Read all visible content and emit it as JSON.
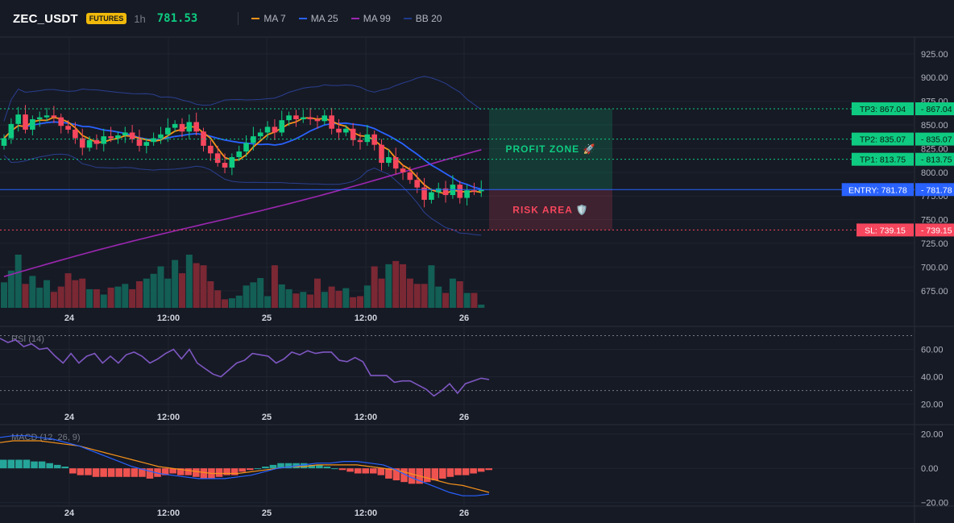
{
  "header": {
    "symbol": "ZEC_USDT",
    "badge": "FUTURES",
    "timeframe": "1h",
    "last_price": "781.53",
    "legend": [
      {
        "label": "MA 7",
        "color": "#f7931a"
      },
      {
        "label": "MA 25",
        "color": "#2962ff"
      },
      {
        "label": "MA 99",
        "color": "#9c27b0"
      },
      {
        "label": "BB 20",
        "color": "#1e3a8a"
      }
    ]
  },
  "chart_data": [
    {
      "type": "candlestick",
      "title": "",
      "y_ticks": [
        675,
        700,
        725,
        750,
        775,
        800,
        825,
        850,
        875,
        900,
        925
      ],
      "y_tick_labels": [
        "675.00",
        "700.00",
        "725.00",
        "750.00",
        "775.00",
        "800.00",
        "825.00",
        "850.00",
        "875.00",
        "900.00",
        "925.00"
      ],
      "ylim": [
        657,
        941
      ],
      "x_tick_labels": [
        "24",
        "12:00",
        "25",
        "12:00",
        "26"
      ],
      "closes": [
        836,
        851,
        861,
        845,
        856,
        858,
        860,
        858,
        849,
        845,
        836,
        826,
        834,
        830,
        838,
        836,
        839,
        842,
        835,
        828,
        832,
        836,
        840,
        847,
        851,
        843,
        853,
        843,
        828,
        820,
        810,
        805,
        816,
        822,
        831,
        838,
        842,
        848,
        842,
        855,
        860,
        856,
        858,
        856,
        854,
        860,
        846,
        842,
        846,
        834,
        832,
        840,
        829,
        810,
        816,
        804,
        800,
        792,
        784,
        771,
        779,
        783,
        776,
        787,
        773,
        781,
        780,
        781.53
      ],
      "volume_levels": [
        0.48,
        0.7,
        1.0,
        0.45,
        0.6,
        0.38,
        0.52,
        0.3,
        0.4,
        0.65,
        0.52,
        0.55,
        0.35,
        0.35,
        0.25,
        0.38,
        0.4,
        0.45,
        0.35,
        0.5,
        0.55,
        0.64,
        0.78,
        0.55,
        0.9,
        0.65,
        1.0,
        0.84,
        0.8,
        0.5,
        0.33,
        0.16,
        0.18,
        0.23,
        0.42,
        0.48,
        0.56,
        0.22,
        0.8,
        0.44,
        0.35,
        0.27,
        0.3,
        0.25,
        0.55,
        0.3,
        0.4,
        0.32,
        0.37,
        0.2,
        0.22,
        0.42,
        0.78,
        0.55,
        0.82,
        0.88,
        0.82,
        0.55,
        0.45,
        0.45,
        0.8,
        0.4,
        0.28,
        0.55,
        0.5,
        0.28,
        0.28,
        0.06
      ],
      "trade": {
        "tp3": {
          "label": "TP3: 867.04",
          "value": 867.04,
          "axis_label": "867.04"
        },
        "tp2": {
          "label": "TP2: 835.07",
          "value": 835.07,
          "axis_label": "835.07"
        },
        "tp1": {
          "label": "TP1: 813.75",
          "value": 813.75,
          "axis_label": "813.75"
        },
        "entry": {
          "label": "ENTRY: 781.78",
          "value": 781.78,
          "axis_label": "781.78"
        },
        "sl": {
          "label": "SL: 739.15",
          "value": 739.15,
          "axis_label": "739.15"
        },
        "profit_zone_label": "PROFIT ZONE 🚀",
        "risk_area_label": "RISK AREA 🛡️"
      }
    },
    {
      "type": "line",
      "title": "RSI (14)",
      "y_tick_labels": [
        "60.00",
        "40.00",
        "20.00"
      ],
      "y_ticks": [
        60,
        40,
        20
      ],
      "ylim": [
        18,
        75
      ],
      "levels": [
        70,
        30
      ],
      "x_tick_labels": [
        "24",
        "12:00",
        "25",
        "12:00",
        "26"
      ],
      "rsi": [
        68,
        65,
        67,
        62,
        64,
        60,
        61,
        55,
        50,
        57,
        50,
        55,
        57,
        50,
        55,
        50,
        56,
        58,
        55,
        50,
        53,
        57,
        60,
        53,
        60,
        50,
        46,
        42,
        40,
        45,
        50,
        52,
        57,
        56,
        55,
        50,
        53,
        58,
        56,
        59,
        57,
        58,
        58,
        52,
        51,
        54,
        51,
        41,
        41,
        41,
        36,
        37,
        37,
        34,
        31,
        26,
        30,
        35,
        28,
        35,
        37,
        39,
        38
      ],
      "color": "#7e57c2"
    },
    {
      "type": "bar",
      "title": "MACD (12, 26, 9)",
      "y_tick_labels": [
        "20.00",
        "0.00",
        "−20.00"
      ],
      "y_ticks": [
        20,
        0,
        -20
      ],
      "ylim": [
        -22,
        24
      ],
      "x_tick_labels": [
        "24",
        "12:00",
        "25",
        "12:00",
        "26"
      ],
      "histogram": [
        5,
        5,
        5,
        5,
        4,
        4,
        3,
        2,
        1,
        -3,
        -4,
        -4,
        -5,
        -5,
        -5,
        -5,
        -5,
        -5,
        -5,
        -6,
        -5,
        -4,
        -3,
        -4,
        -4,
        -5,
        -6,
        -6,
        -5,
        -4,
        -4,
        -2,
        -1,
        0,
        1,
        2,
        3,
        3,
        3,
        3,
        2,
        2,
        1,
        0,
        -1,
        -2,
        -3,
        -3,
        -3,
        -4,
        -6,
        -7,
        -8,
        -9,
        -9,
        -8,
        -7,
        -6,
        -5,
        -4,
        -4,
        -3,
        -2,
        -1
      ],
      "macd": [
        18,
        19,
        19,
        18,
        17,
        15,
        13,
        10,
        7,
        4,
        1,
        -1,
        -3,
        -4,
        -5,
        -6,
        -6,
        -6,
        -5,
        -4,
        -2,
        0,
        1,
        2,
        3,
        3,
        4,
        4,
        3,
        2,
        -1,
        -5,
        -8,
        -11,
        -14,
        -16,
        -16,
        -15
      ],
      "signal": [
        15,
        16,
        16,
        16,
        15,
        14,
        13,
        11,
        9,
        7,
        5,
        3,
        1,
        0,
        -1,
        -2,
        -3,
        -3,
        -3,
        -2,
        -1,
        0,
        1,
        1,
        2,
        2,
        2,
        2,
        1,
        0,
        -1,
        -3,
        -5,
        -7,
        -9,
        -10,
        -12,
        -14
      ],
      "macd_color": "#2962ff",
      "signal_color": "#f7931a",
      "pos_color": "#26a69a",
      "neg_color": "#ef5350"
    }
  ]
}
